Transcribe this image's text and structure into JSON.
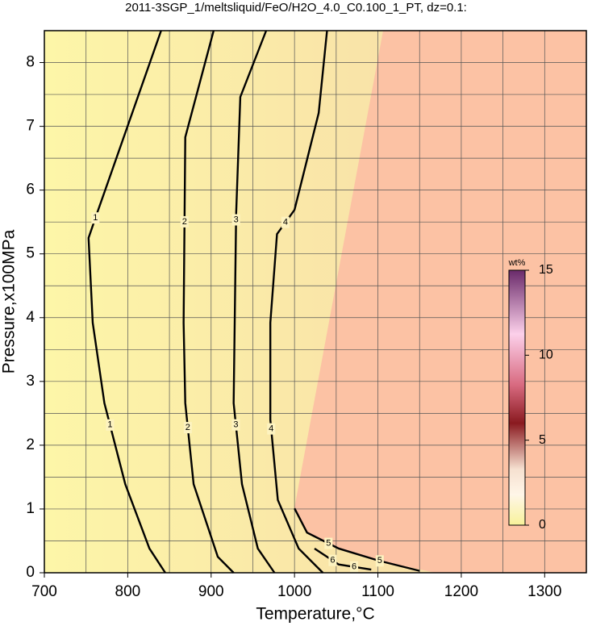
{
  "chart_data": {
    "type": "contour",
    "title": "2011-3SGP_1/meltsliquid/FeO/H2O_4.0_C0.100_1_PT, dz=0.1:",
    "x_label": "Temperature,°C",
    "y_label": "Pressure,x100MPa",
    "xlim": [
      700,
      1350
    ],
    "ylim": [
      0,
      8.5
    ],
    "xticks": [
      700,
      800,
      900,
      1000,
      1100,
      1200,
      1300
    ],
    "yticks": [
      0,
      1,
      2,
      3,
      4,
      5,
      6,
      7,
      8
    ],
    "grid": true,
    "contours": [
      {
        "level": 1,
        "x": [
          840,
          763,
          753,
          758,
          772,
          797,
          826,
          845
        ],
        "y": [
          8.5,
          5.63,
          5.25,
          3.92,
          2.66,
          1.39,
          0.38,
          0
        ]
      },
      {
        "level": 2,
        "x": [
          903,
          869,
          867,
          869,
          879,
          908,
          927
        ],
        "y": [
          8.5,
          6.83,
          3.92,
          2.66,
          1.39,
          0.25,
          0
        ]
      },
      {
        "level": 3,
        "x": [
          966,
          935,
          930,
          927,
          937,
          956,
          976
        ],
        "y": [
          8.5,
          7.46,
          5.63,
          2.66,
          1.39,
          0.38,
          0
        ]
      },
      {
        "level": 4,
        "x": [
          1039,
          1029,
          1000,
          979,
          971,
          971,
          980,
          1005,
          1034
        ],
        "y": [
          8.5,
          7.21,
          5.69,
          5.31,
          3.92,
          2.4,
          1.14,
          0.38,
          0
        ]
      },
      {
        "level": 5,
        "x": [
          1000,
          1015,
          1053,
          1101,
          1150
        ],
        "y": [
          1.01,
          0.63,
          0.38,
          0.19,
          0.03
        ]
      },
      {
        "level": 6,
        "x": [
          1024,
          1053,
          1092
        ],
        "y": [
          0.38,
          0.13,
          0.05
        ]
      }
    ],
    "colorbar": {
      "label": "wt%",
      "lim": [
        0,
        15
      ],
      "ticks": [
        0,
        5,
        10,
        15
      ]
    }
  }
}
